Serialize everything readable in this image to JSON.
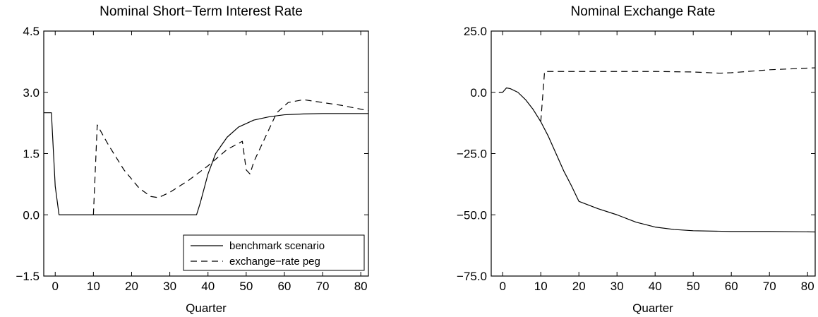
{
  "chart_data": [
    {
      "type": "line",
      "title": "Nominal Short−Term Interest Rate",
      "xlabel": "Quarter",
      "ylabel": "",
      "xlim": [
        -3,
        82
      ],
      "ylim": [
        -1.5,
        4.5
      ],
      "xticks": [
        0,
        10,
        20,
        30,
        40,
        50,
        60,
        70,
        80
      ],
      "xtick_labels": [
        "0",
        "10",
        "20",
        "30",
        "40",
        "50",
        "60",
        "70",
        "80"
      ],
      "yticks": [
        -1.5,
        0,
        1.5,
        3,
        4.5
      ],
      "ytick_labels": [
        "−1.5",
        "0.0",
        "1.5",
        "3.0",
        "4.5"
      ],
      "grid": false,
      "legend_position": "bottom-right",
      "series": [
        {
          "name": "benchmark scenario",
          "style": "solid",
          "points": [
            [
              -3,
              2.5
            ],
            [
              -1,
              2.5
            ],
            [
              0,
              0.7
            ],
            [
              1,
              0
            ],
            [
              10,
              0
            ],
            [
              20,
              0
            ],
            [
              30,
              0
            ],
            [
              37,
              0
            ],
            [
              38,
              0.3
            ],
            [
              40,
              1.0
            ],
            [
              42,
              1.5
            ],
            [
              45,
              1.9
            ],
            [
              48,
              2.15
            ],
            [
              52,
              2.32
            ],
            [
              56,
              2.4
            ],
            [
              60,
              2.45
            ],
            [
              65,
              2.47
            ],
            [
              70,
              2.48
            ],
            [
              75,
              2.48
            ],
            [
              82,
              2.48
            ]
          ]
        },
        {
          "name": "exchange−rate peg",
          "style": "dashed",
          "points": [
            [
              10,
              0
            ],
            [
              11,
              2.2
            ],
            [
              14,
              1.7
            ],
            [
              18,
              1.1
            ],
            [
              22,
              0.65
            ],
            [
              25,
              0.45
            ],
            [
              27,
              0.42
            ],
            [
              30,
              0.55
            ],
            [
              35,
              0.85
            ],
            [
              40,
              1.2
            ],
            [
              45,
              1.6
            ],
            [
              48,
              1.75
            ],
            [
              49,
              1.8
            ],
            [
              50,
              1.1
            ],
            [
              51,
              1.0
            ],
            [
              52,
              1.3
            ],
            [
              55,
              1.9
            ],
            [
              58,
              2.5
            ],
            [
              61,
              2.75
            ],
            [
              65,
              2.82
            ],
            [
              70,
              2.75
            ],
            [
              75,
              2.68
            ],
            [
              82,
              2.55
            ]
          ]
        }
      ]
    },
    {
      "type": "line",
      "title": "Nominal Exchange Rate",
      "xlabel": "Quarter",
      "ylabel": "",
      "xlim": [
        -3,
        82
      ],
      "ylim": [
        -75,
        25
      ],
      "xticks": [
        0,
        10,
        20,
        30,
        40,
        50,
        60,
        70,
        80
      ],
      "xtick_labels": [
        "0",
        "10",
        "20",
        "30",
        "40",
        "50",
        "60",
        "70",
        "80"
      ],
      "yticks": [
        -75,
        -50,
        -25,
        0,
        25
      ],
      "ytick_labels": [
        "−75.0",
        "−50.0",
        "−25.0",
        "0.0",
        "25.0"
      ],
      "grid": false,
      "series": [
        {
          "name": "benchmark scenario",
          "style": "solid",
          "points": [
            [
              -1,
              0
            ],
            [
              0,
              0
            ],
            [
              1,
              1.8
            ],
            [
              2,
              1.5
            ],
            [
              4,
              0
            ],
            [
              6,
              -3
            ],
            [
              8,
              -7
            ],
            [
              10,
              -12
            ],
            [
              12,
              -18
            ],
            [
              14,
              -25
            ],
            [
              16,
              -32
            ],
            [
              18,
              -38
            ],
            [
              20,
              -44.5
            ],
            [
              25,
              -47.5
            ],
            [
              30,
              -50
            ],
            [
              35,
              -53
            ],
            [
              40,
              -55
            ],
            [
              45,
              -56
            ],
            [
              50,
              -56.5
            ],
            [
              60,
              -56.8
            ],
            [
              70,
              -56.8
            ],
            [
              82,
              -57
            ]
          ]
        },
        {
          "name": "exchange−rate peg",
          "style": "dashed",
          "points": [
            [
              10,
              -12
            ],
            [
              11,
              8.5
            ],
            [
              20,
              8.5
            ],
            [
              30,
              8.5
            ],
            [
              40,
              8.5
            ],
            [
              50,
              8.3
            ],
            [
              57,
              7.8
            ],
            [
              60,
              8
            ],
            [
              70,
              9.2
            ],
            [
              82,
              10
            ]
          ]
        }
      ]
    }
  ]
}
